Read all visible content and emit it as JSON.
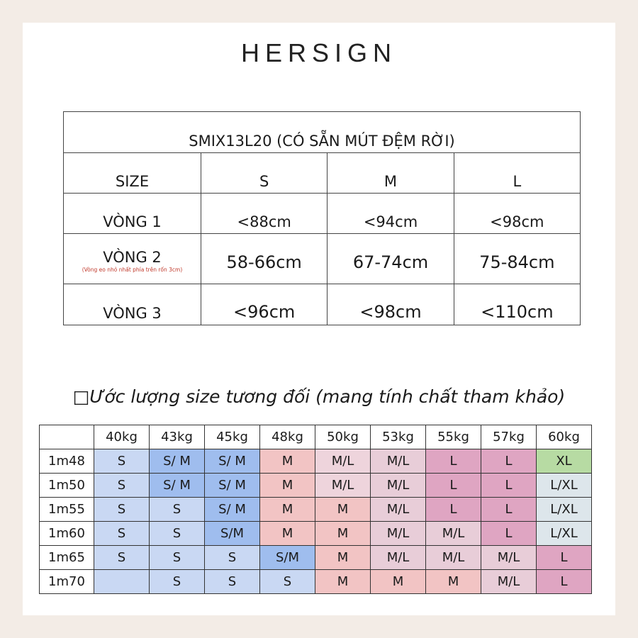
{
  "brand": "HERSIGN",
  "size_table": {
    "title": "SMIX13L20 (CÓ SẴN MÚT ĐỆM RỜI)",
    "header": [
      "SIZE",
      "S",
      "M",
      "L"
    ],
    "rows": [
      {
        "label": "VÒNG 1",
        "note": "",
        "values": [
          "<88cm",
          "<94cm",
          "<98cm"
        ]
      },
      {
        "label": "VÒNG 2",
        "note": "(Vòng eo nhỏ nhất phía trên rốn 3cm)",
        "values": [
          "58-66cm",
          "67-74cm",
          "75-84cm"
        ]
      },
      {
        "label": "VÒNG 3",
        "note": "",
        "values": [
          "<96cm",
          "<98cm",
          "<110cm"
        ]
      }
    ]
  },
  "estimate": {
    "heading": "□Ước lượng size tương đối (mang tính chất tham khảo)",
    "weights": [
      "40kg",
      "43kg",
      "45kg",
      "48kg",
      "50kg",
      "53kg",
      "55kg",
      "57kg",
      "60kg"
    ],
    "heights": [
      "1m48",
      "1m50",
      "1m55",
      "1m60",
      "1m65",
      "1m70"
    ],
    "cells": [
      [
        "S",
        "S/ M",
        "S/ M",
        "M",
        "M/L",
        "M/L",
        "L",
        "L",
        "XL"
      ],
      [
        "S",
        "S/ M",
        "S/ M",
        "M",
        "M/L",
        "M/L",
        "L",
        "L",
        "L/XL"
      ],
      [
        "S",
        "S",
        "S/ M",
        "M",
        "M",
        "M/L",
        "L",
        "L",
        "L/XL"
      ],
      [
        "S",
        "S",
        "S/M",
        "M",
        "M",
        "M/L",
        "M/L",
        "L",
        "L/XL"
      ],
      [
        "S",
        "S",
        "S",
        "S/M",
        "M",
        "M/L",
        "M/L",
        "M/L",
        "L"
      ],
      [
        "",
        "S",
        "S",
        "S",
        "M",
        "M",
        "M",
        "M/L",
        "L"
      ]
    ],
    "colors": [
      [
        "#c9d8f3",
        "#9fbdee",
        "#9fbdee",
        "#f2c4c4",
        "#eed4dc",
        "#e8cdd8",
        "#dfa5c2",
        "#dfa5c2",
        "#b7dba3"
      ],
      [
        "#c9d8f3",
        "#9fbdee",
        "#9fbdee",
        "#f2c4c4",
        "#eed4dc",
        "#e8cdd8",
        "#dfa5c2",
        "#dfa5c2",
        "#dde6eb"
      ],
      [
        "#c9d8f3",
        "#c9d8f3",
        "#9fbdee",
        "#f2c4c4",
        "#f2c4c4",
        "#e8cdd8",
        "#dfa5c2",
        "#dfa5c2",
        "#dde6eb"
      ],
      [
        "#c9d8f3",
        "#c9d8f3",
        "#9fbdee",
        "#f2c4c4",
        "#f2c4c4",
        "#e8cdd8",
        "#e8cdd8",
        "#dfa5c2",
        "#dde6eb"
      ],
      [
        "#c9d8f3",
        "#c9d8f3",
        "#c9d8f3",
        "#9fbdee",
        "#f2c4c4",
        "#e8cdd8",
        "#e8cdd8",
        "#e8cdd8",
        "#dfa5c2"
      ],
      [
        "#c9d8f3",
        "#c9d8f3",
        "#c9d8f3",
        "#c9d8f3",
        "#f2c4c4",
        "#f2c4c4",
        "#f2c4c4",
        "#e8cdd8",
        "#dfa5c2"
      ]
    ]
  }
}
